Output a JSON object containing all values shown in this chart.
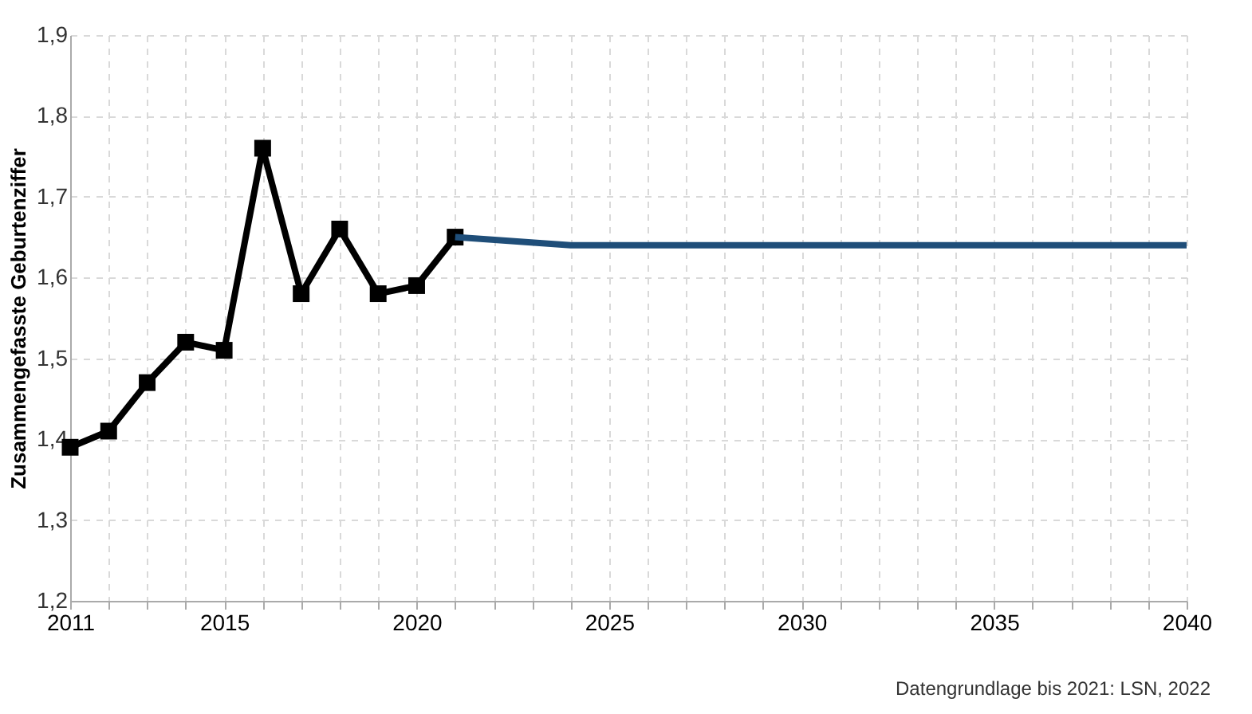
{
  "chart_data": {
    "type": "line",
    "ylabel": "Zusammengefasste Geburtenziffer",
    "series": [
      {
        "color": "#000000",
        "marker": "square",
        "x": [
          2011,
          2012,
          2013,
          2014,
          2015,
          2016,
          2017,
          2018,
          2019,
          2020,
          2021
        ],
        "values": [
          1.39,
          1.41,
          1.47,
          1.52,
          1.51,
          1.76,
          1.58,
          1.66,
          1.58,
          1.59,
          1.65
        ]
      },
      {
        "color": "#1f4e79",
        "marker": "none",
        "x": [
          2021,
          2024,
          2030,
          2035,
          2040
        ],
        "values": [
          1.65,
          1.64,
          1.64,
          1.64,
          1.64
        ]
      }
    ],
    "xlim": [
      2011,
      2040
    ],
    "xticks": [
      2011,
      {
        "value": 2012,
        "label": null
      },
      {
        "value": 2013,
        "label": null
      },
      {
        "value": 2014,
        "label": null
      },
      2015,
      {
        "value": 2016,
        "label": null
      },
      {
        "value": 2017,
        "label": null
      },
      {
        "value": 2018,
        "label": null
      },
      {
        "value": 2019,
        "label": null
      },
      2020,
      {
        "value": 2021,
        "label": null
      },
      {
        "value": 2022,
        "label": null
      },
      {
        "value": 2023,
        "label": null
      },
      {
        "value": 2024,
        "label": null
      },
      2025,
      {
        "value": 2026,
        "label": null
      },
      {
        "value": 2027,
        "label": null
      },
      {
        "value": 2028,
        "label": null
      },
      {
        "value": 2029,
        "label": null
      },
      2030,
      {
        "value": 2031,
        "label": null
      },
      {
        "value": 2032,
        "label": null
      },
      {
        "value": 2033,
        "label": null
      },
      {
        "value": 2034,
        "label": null
      },
      2035,
      {
        "value": 2036,
        "label": null
      },
      {
        "value": 2037,
        "label": null
      },
      {
        "value": 2038,
        "label": null
      },
      {
        "value": 2039,
        "label": null
      },
      2040
    ],
    "ylim": [
      1.2,
      1.9
    ],
    "yticks": [
      {
        "value": 1.2,
        "label": "1,2"
      },
      {
        "value": 1.3,
        "label": "1,3"
      },
      {
        "value": 1.4,
        "label": "1,4"
      },
      {
        "value": 1.5,
        "label": "1,5"
      },
      {
        "value": 1.6,
        "label": "1,6"
      },
      {
        "value": 1.7,
        "label": "1,7"
      },
      {
        "value": 1.8,
        "label": "1,8"
      },
      {
        "value": 1.9,
        "label": "1,9"
      }
    ],
    "grid": true,
    "line_style": "solid",
    "annotations": [
      "Datengrundlage bis 2021: LSN, 2022"
    ]
  }
}
